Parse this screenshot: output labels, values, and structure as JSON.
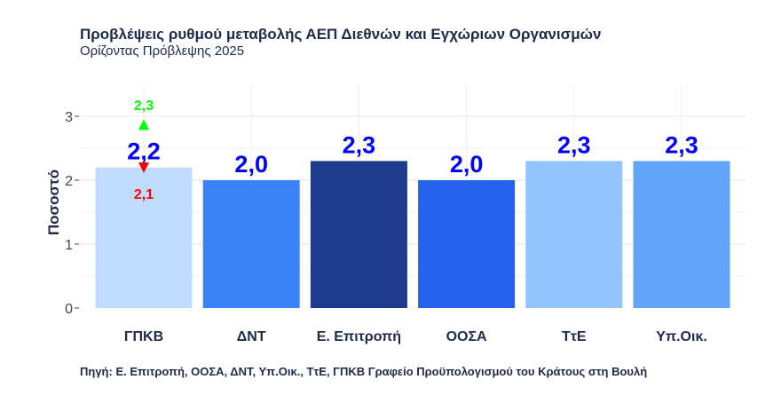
{
  "chart_data": {
    "type": "bar",
    "title": "Προβλέψεις ρυθμού μεταβολής ΑΕΠ Διεθνών και Εγχώριων Οργανισμών",
    "subtitle": "Ορίζοντας Πρόβλεψης 2025",
    "xlabel": "",
    "ylabel": "Ποσοστό",
    "ylim": [
      0,
      3.3
    ],
    "yticks": [
      "0",
      "1",
      "2",
      "3"
    ],
    "grid": true,
    "categories": [
      "ΓΠΚΒ",
      "ΔΝΤ",
      "Ε. Επιτροπή",
      "ΟΟΣΑ",
      "ΤτΕ",
      "Υπ.Οικ."
    ],
    "values": [
      2.2,
      2.0,
      2.3,
      2.0,
      2.3,
      2.3
    ],
    "data_labels": [
      "2,2",
      "2,0",
      "2,3",
      "2,0",
      "2,3",
      "2,3"
    ],
    "colors": [
      "#bfdbfe",
      "#3b82f6",
      "#1e3a8a",
      "#2563eb",
      "#93c5fd",
      "#60a5fa"
    ],
    "range_annotation": {
      "category": "ΓΠΚΒ",
      "high": 2.3,
      "high_label": "2,3",
      "high_color": "#00ff00",
      "low": 2.1,
      "low_label": "2,1",
      "low_color": "#ff0000"
    },
    "label_color": "#0000ff",
    "source": "Πηγή:  Ε. Επιτροπή, ΟΟΣΑ, ΔΝΤ, Υπ.Οικ., ΤτΕ, ΓΠΚΒ   Γραφείο Προϋπολογισμού του Κράτους στη Βουλή"
  }
}
